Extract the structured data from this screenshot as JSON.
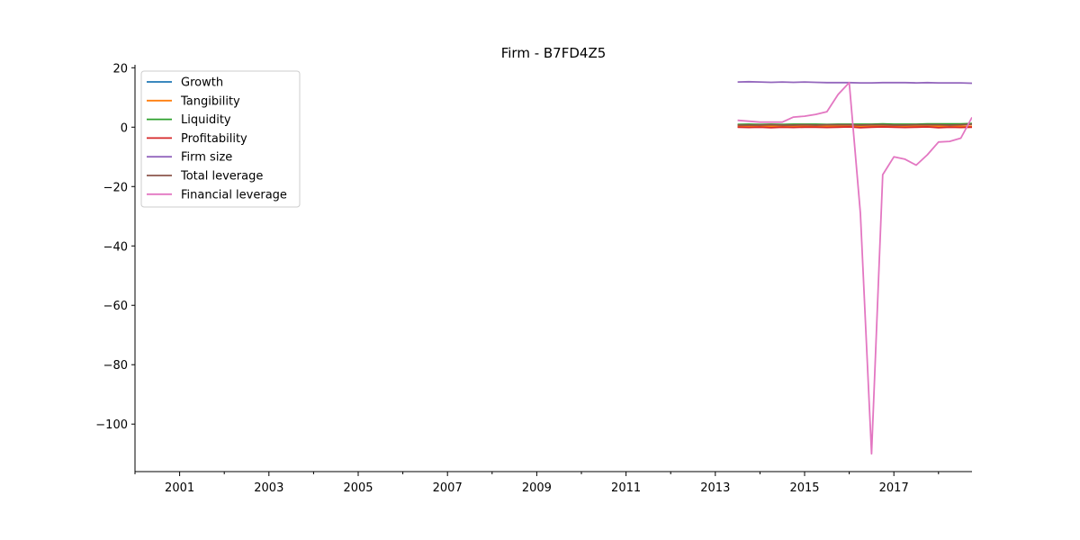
{
  "chart_data": {
    "type": "line",
    "title": "Firm - B7FD4Z5",
    "xlabel": "",
    "ylabel": "",
    "xlim": [
      2000.0,
      2018.75
    ],
    "ylim": [
      -116,
      21
    ],
    "x_ticks": [
      2001,
      2003,
      2005,
      2007,
      2009,
      2011,
      2013,
      2015,
      2017
    ],
    "x_minor_ticks": [
      2000,
      2002,
      2004,
      2006,
      2008,
      2010,
      2012,
      2014,
      2016,
      2018
    ],
    "y_ticks": [
      20,
      0,
      -20,
      -40,
      -60,
      -80,
      -100
    ],
    "grid": false,
    "legend_position": "upper-left",
    "x": [
      2013.5,
      2013.75,
      2014.0,
      2014.25,
      2014.5,
      2014.75,
      2015.0,
      2015.25,
      2015.5,
      2015.75,
      2016.0,
      2016.25,
      2016.5,
      2016.75,
      2017.0,
      2017.25,
      2017.5,
      2017.75,
      2018.0,
      2018.25,
      2018.5,
      2018.75
    ],
    "series": [
      {
        "name": "Growth",
        "color": "#1f77b4",
        "values": [
          0.1,
          0.2,
          0.1,
          0.2,
          0.1,
          0.2,
          0.1,
          0.2,
          0.1,
          0.2,
          0.1,
          0.2,
          0.1,
          0.2,
          0.1,
          0.2,
          0.1,
          0.2,
          0.1,
          0.2,
          0.1,
          0.2
        ]
      },
      {
        "name": "Tangibility",
        "color": "#ff7f0e",
        "values": [
          0.3,
          0.3,
          0.3,
          0.3,
          0.3,
          0.3,
          0.3,
          0.3,
          0.3,
          0.3,
          0.3,
          0.3,
          0.3,
          0.3,
          0.3,
          0.3,
          0.3,
          0.3,
          0.3,
          0.3,
          0.3,
          0.3
        ]
      },
      {
        "name": "Liquidity",
        "color": "#2ca02c",
        "values": [
          0.9,
          1.0,
          0.9,
          1.0,
          0.9,
          1.0,
          1.0,
          1.0,
          0.9,
          1.0,
          1.0,
          1.0,
          1.0,
          1.1,
          1.0,
          1.0,
          1.0,
          1.1,
          1.1,
          1.1,
          1.1,
          1.2
        ]
      },
      {
        "name": "Profitability",
        "color": "#d62728",
        "values": [
          0.0,
          -0.1,
          0.0,
          -0.2,
          0.0,
          -0.1,
          0.0,
          0.0,
          -0.1,
          0.0,
          0.1,
          -0.2,
          0.0,
          0.1,
          0.0,
          -0.1,
          0.0,
          0.1,
          -0.2,
          0.0,
          -0.1,
          0.0
        ]
      },
      {
        "name": "Firm size",
        "color": "#9467bd",
        "values": [
          15.2,
          15.3,
          15.2,
          15.1,
          15.2,
          15.1,
          15.2,
          15.1,
          15.0,
          15.0,
          15.0,
          14.9,
          14.9,
          15.0,
          15.0,
          15.0,
          14.9,
          15.0,
          14.9,
          14.9,
          14.9,
          14.8
        ]
      },
      {
        "name": "Total leverage",
        "color": "#8c564b",
        "values": [
          0.7,
          0.7,
          0.7,
          0.8,
          0.7,
          0.7,
          0.8,
          0.7,
          0.8,
          0.8,
          0.8,
          0.7,
          0.8,
          0.8,
          0.7,
          0.7,
          0.8,
          0.8,
          0.8,
          0.7,
          0.8,
          1.0
        ]
      },
      {
        "name": "Financial leverage",
        "color": "#e377c2",
        "values": [
          2.3,
          2.0,
          1.7,
          1.7,
          1.7,
          3.4,
          3.7,
          4.3,
          5.2,
          11.0,
          15.0,
          -29.0,
          -110.0,
          -16.0,
          -10.0,
          -10.8,
          -12.8,
          -9.3,
          -5.0,
          -4.8,
          -3.7,
          3.3
        ]
      }
    ]
  }
}
